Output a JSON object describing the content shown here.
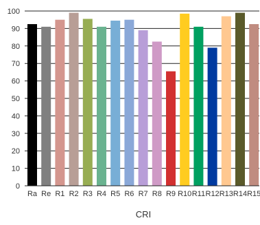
{
  "chart_data": {
    "type": "bar",
    "title": "",
    "xlabel": "CRI",
    "ylabel": "",
    "ylim": [
      0,
      100
    ],
    "yticks": [
      0,
      10,
      20,
      30,
      40,
      50,
      60,
      70,
      80,
      90,
      100
    ],
    "grid": true,
    "legend": "none",
    "categories": [
      "Ra",
      "Re",
      "R1",
      "R2",
      "R3",
      "R4",
      "R5",
      "R6",
      "R7",
      "R8",
      "R9",
      "R10",
      "R11",
      "R12",
      "R13",
      "R14",
      "R15"
    ],
    "values": [
      92.5,
      91,
      95,
      99,
      95.5,
      91,
      94.5,
      95,
      89,
      82.5,
      65.5,
      98.5,
      91,
      79,
      97,
      99,
      92.5
    ],
    "colors": [
      "#000000",
      "#808080",
      "#d4968e",
      "#b89e96",
      "#97ad52",
      "#6ab390",
      "#78aed6",
      "#8aa8d8",
      "#b89ed8",
      "#cf9ac6",
      "#d23030",
      "#ffcc20",
      "#00a060",
      "#003aa0",
      "#ffc890",
      "#5a5a2a",
      "#c08c80"
    ]
  }
}
